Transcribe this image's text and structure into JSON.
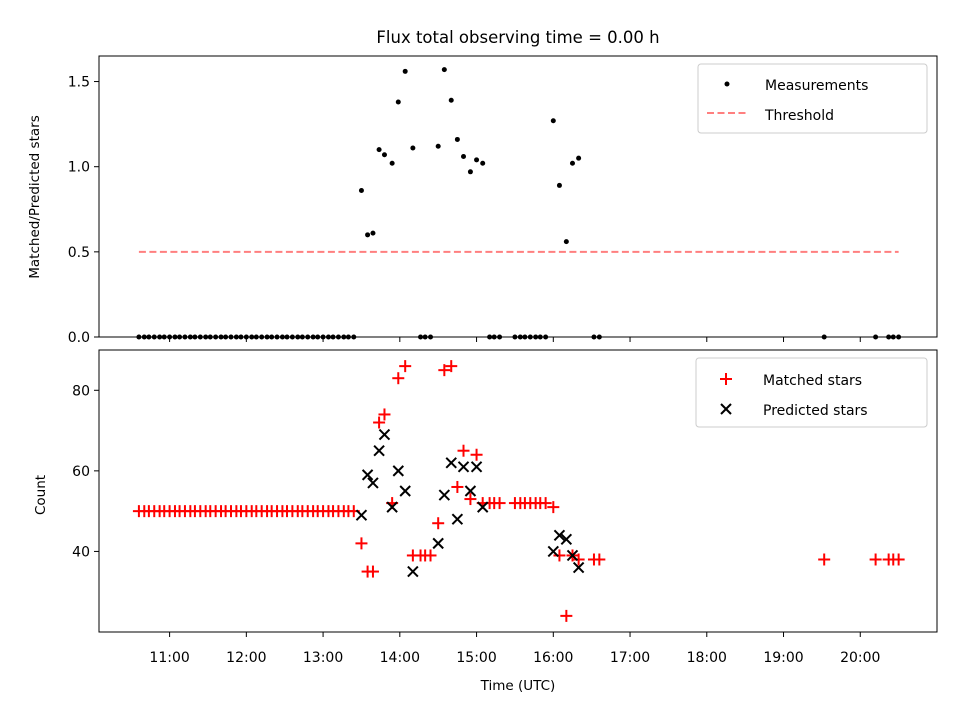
{
  "chart_data": [
    {
      "type": "scatter",
      "title": "Flux total observing time = 0.00 h",
      "xlabel": "",
      "ylabel": "Matched/Predicted stars",
      "xlim": [
        10.08,
        21.0
      ],
      "ylim": [
        0,
        1.65
      ],
      "yticks": [
        0.0,
        0.5,
        1.0,
        1.5
      ],
      "yticklabels": [
        "0.0",
        "0.5",
        "1.0",
        "1.5"
      ],
      "grid": false,
      "legend": "top-right",
      "threshold": {
        "name": "Threshold",
        "value": 0.5,
        "x_start": 10.6,
        "x_end": 20.5,
        "color": "#ff7f7f"
      },
      "series": [
        {
          "name": "Measurements",
          "marker": "dot",
          "color": "#000000",
          "points": [
            [
              10.6,
              0
            ],
            [
              10.67,
              0
            ],
            [
              10.73,
              0
            ],
            [
              10.8,
              0
            ],
            [
              10.87,
              0
            ],
            [
              10.93,
              0
            ],
            [
              11.0,
              0
            ],
            [
              11.07,
              0
            ],
            [
              11.13,
              0
            ],
            [
              11.2,
              0
            ],
            [
              11.27,
              0
            ],
            [
              11.33,
              0
            ],
            [
              11.4,
              0
            ],
            [
              11.47,
              0
            ],
            [
              11.53,
              0
            ],
            [
              11.6,
              0
            ],
            [
              11.67,
              0
            ],
            [
              11.73,
              0
            ],
            [
              11.8,
              0
            ],
            [
              11.87,
              0
            ],
            [
              11.93,
              0
            ],
            [
              12.0,
              0
            ],
            [
              12.07,
              0
            ],
            [
              12.13,
              0
            ],
            [
              12.2,
              0
            ],
            [
              12.27,
              0
            ],
            [
              12.33,
              0
            ],
            [
              12.4,
              0
            ],
            [
              12.47,
              0
            ],
            [
              12.53,
              0
            ],
            [
              12.6,
              0
            ],
            [
              12.67,
              0
            ],
            [
              12.73,
              0
            ],
            [
              12.8,
              0
            ],
            [
              12.87,
              0
            ],
            [
              12.93,
              0
            ],
            [
              13.0,
              0
            ],
            [
              13.07,
              0
            ],
            [
              13.13,
              0
            ],
            [
              13.2,
              0
            ],
            [
              13.27,
              0
            ],
            [
              13.33,
              0
            ],
            [
              13.4,
              0
            ],
            [
              13.5,
              0.86
            ],
            [
              13.58,
              0.6
            ],
            [
              13.65,
              0.61
            ],
            [
              13.73,
              1.1
            ],
            [
              13.8,
              1.07
            ],
            [
              13.9,
              1.02
            ],
            [
              13.98,
              1.38
            ],
            [
              14.07,
              1.56
            ],
            [
              14.17,
              1.11
            ],
            [
              14.27,
              0
            ],
            [
              14.33,
              0
            ],
            [
              14.4,
              0
            ],
            [
              14.5,
              1.12
            ],
            [
              14.58,
              1.57
            ],
            [
              14.67,
              1.39
            ],
            [
              14.75,
              1.16
            ],
            [
              14.83,
              1.06
            ],
            [
              14.92,
              0.97
            ],
            [
              15.0,
              1.04
            ],
            [
              15.08,
              1.02
            ],
            [
              15.17,
              0
            ],
            [
              15.23,
              0
            ],
            [
              15.3,
              0
            ],
            [
              15.5,
              0
            ],
            [
              15.57,
              0
            ],
            [
              15.63,
              0
            ],
            [
              15.7,
              0
            ],
            [
              15.77,
              0
            ],
            [
              15.83,
              0
            ],
            [
              15.9,
              0
            ],
            [
              16.0,
              1.27
            ],
            [
              16.08,
              0.89
            ],
            [
              16.17,
              0.56
            ],
            [
              16.25,
              1.02
            ],
            [
              16.33,
              1.05
            ],
            [
              16.53,
              0
            ],
            [
              16.6,
              0
            ],
            [
              19.53,
              0
            ],
            [
              20.2,
              0
            ],
            [
              20.37,
              0
            ],
            [
              20.43,
              0
            ],
            [
              20.5,
              0
            ]
          ]
        }
      ]
    },
    {
      "type": "scatter",
      "title": "",
      "xlabel": "Time (UTC)",
      "ylabel": "Count",
      "xlim": [
        10.08,
        21.0
      ],
      "ylim": [
        20,
        90
      ],
      "xticks": [
        11,
        12,
        13,
        14,
        15,
        16,
        17,
        18,
        19,
        20
      ],
      "xticklabels": [
        "11:00",
        "12:00",
        "13:00",
        "14:00",
        "15:00",
        "16:00",
        "17:00",
        "18:00",
        "19:00",
        "20:00"
      ],
      "yticks": [
        40,
        60,
        80
      ],
      "yticklabels": [
        "40",
        "60",
        "80"
      ],
      "grid": false,
      "legend": "top-right",
      "series": [
        {
          "name": "Matched stars",
          "marker": "plus",
          "color": "#ff0000",
          "points": [
            [
              10.6,
              50
            ],
            [
              10.67,
              50
            ],
            [
              10.73,
              50
            ],
            [
              10.8,
              50
            ],
            [
              10.87,
              50
            ],
            [
              10.93,
              50
            ],
            [
              11.0,
              50
            ],
            [
              11.07,
              50
            ],
            [
              11.13,
              50
            ],
            [
              11.2,
              50
            ],
            [
              11.27,
              50
            ],
            [
              11.33,
              50
            ],
            [
              11.4,
              50
            ],
            [
              11.47,
              50
            ],
            [
              11.53,
              50
            ],
            [
              11.6,
              50
            ],
            [
              11.67,
              50
            ],
            [
              11.73,
              50
            ],
            [
              11.8,
              50
            ],
            [
              11.87,
              50
            ],
            [
              11.93,
              50
            ],
            [
              12.0,
              50
            ],
            [
              12.07,
              50
            ],
            [
              12.13,
              50
            ],
            [
              12.2,
              50
            ],
            [
              12.27,
              50
            ],
            [
              12.33,
              50
            ],
            [
              12.4,
              50
            ],
            [
              12.47,
              50
            ],
            [
              12.53,
              50
            ],
            [
              12.6,
              50
            ],
            [
              12.67,
              50
            ],
            [
              12.73,
              50
            ],
            [
              12.8,
              50
            ],
            [
              12.87,
              50
            ],
            [
              12.93,
              50
            ],
            [
              13.0,
              50
            ],
            [
              13.07,
              50
            ],
            [
              13.13,
              50
            ],
            [
              13.2,
              50
            ],
            [
              13.27,
              50
            ],
            [
              13.33,
              50
            ],
            [
              13.4,
              50
            ],
            [
              13.5,
              42
            ],
            [
              13.58,
              35
            ],
            [
              13.65,
              35
            ],
            [
              13.73,
              72
            ],
            [
              13.8,
              74
            ],
            [
              13.9,
              52
            ],
            [
              13.98,
              83
            ],
            [
              14.07,
              86
            ],
            [
              14.17,
              39
            ],
            [
              14.27,
              39
            ],
            [
              14.33,
              39
            ],
            [
              14.4,
              39
            ],
            [
              14.5,
              47
            ],
            [
              14.58,
              85
            ],
            [
              14.67,
              86
            ],
            [
              14.75,
              56
            ],
            [
              14.83,
              65
            ],
            [
              14.92,
              53
            ],
            [
              15.0,
              64
            ],
            [
              15.08,
              52
            ],
            [
              15.17,
              52
            ],
            [
              15.23,
              52
            ],
            [
              15.3,
              52
            ],
            [
              15.5,
              52
            ],
            [
              15.57,
              52
            ],
            [
              15.63,
              52
            ],
            [
              15.7,
              52
            ],
            [
              15.77,
              52
            ],
            [
              15.83,
              52
            ],
            [
              15.9,
              52
            ],
            [
              16.0,
              51
            ],
            [
              16.08,
              39
            ],
            [
              16.17,
              24
            ],
            [
              16.25,
              39
            ],
            [
              16.33,
              38
            ],
            [
              16.53,
              38
            ],
            [
              16.6,
              38
            ],
            [
              19.53,
              38
            ],
            [
              20.2,
              38
            ],
            [
              20.37,
              38
            ],
            [
              20.43,
              38
            ],
            [
              20.5,
              38
            ]
          ]
        },
        {
          "name": "Predicted stars",
          "marker": "x",
          "color": "#000000",
          "points": [
            [
              13.5,
              49
            ],
            [
              13.58,
              59
            ],
            [
              13.65,
              57
            ],
            [
              13.73,
              65
            ],
            [
              13.8,
              69
            ],
            [
              13.9,
              51
            ],
            [
              13.98,
              60
            ],
            [
              14.07,
              55
            ],
            [
              14.17,
              35
            ],
            [
              14.5,
              42
            ],
            [
              14.58,
              54
            ],
            [
              14.67,
              62
            ],
            [
              14.75,
              48
            ],
            [
              14.83,
              61
            ],
            [
              14.92,
              55
            ],
            [
              15.0,
              61
            ],
            [
              15.08,
              51
            ],
            [
              16.0,
              40
            ],
            [
              16.08,
              44
            ],
            [
              16.17,
              43
            ],
            [
              16.25,
              39
            ],
            [
              16.33,
              36
            ]
          ]
        }
      ]
    }
  ]
}
